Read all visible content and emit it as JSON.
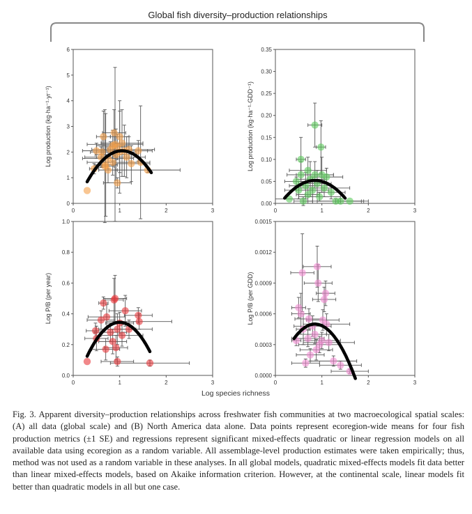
{
  "figure": {
    "title": "Global fish diversity–production relationships",
    "shared_xlabel": "Log species richness"
  },
  "caption": {
    "text": "Fig. 3. Apparent diversity–production relationships across freshwater fish communities at two macroecological spatial scales: (A) all data (global scale) and (B) North America data alone. Data points represent ecoregion-wide means for four fish production metrics (±1 SE) and regressions represent significant mixed-effects quadratic or linear regression models on all available data using ecoregion as a random variable. All assemblage-level production estimates were taken empirically; thus, method was not used as a random variable in these analyses. In all global models, quadratic mixed-effects models fit data better than linear mixed-effects models, based on Akaike information criterion. However, at the continental scale, linear models fit better than quadratic models in all but one case."
  },
  "colors": {
    "orange": "#f5a04a",
    "green": "#5cc95c",
    "red": "#e8383c",
    "pink": "#f08ad0",
    "curve": "#000000",
    "frame": "#555555",
    "errorbar": "#555555"
  },
  "chart_data": [
    {
      "type": "scatter",
      "id": "production-area",
      "ylabel": "Log production (kg·ha⁻¹·yr⁻¹)",
      "xlim": [
        0,
        3
      ],
      "ylim": [
        0,
        6
      ],
      "xticks": [
        "0",
        "1",
        "2",
        "3"
      ],
      "yticks": [
        "0",
        "1",
        "2",
        "3",
        "4",
        "5",
        "6"
      ],
      "color": "orange",
      "points": [
        {
          "x": 0.3,
          "y": 0.5,
          "xe": 0.0,
          "ye": 0.0
        },
        {
          "x": 0.45,
          "y": 1.35,
          "xe": 0.1,
          "ye": 0.2
        },
        {
          "x": 0.5,
          "y": 2.05,
          "xe": 0.3,
          "ye": 0.3
        },
        {
          "x": 0.6,
          "y": 1.8,
          "xe": 0.35,
          "ye": 0.4
        },
        {
          "x": 0.62,
          "y": 2.0,
          "xe": 0.25,
          "ye": 0.6
        },
        {
          "x": 0.65,
          "y": 2.6,
          "xe": 0.15,
          "ye": 1.0
        },
        {
          "x": 0.68,
          "y": 1.45,
          "xe": 0.2,
          "ye": 2.2
        },
        {
          "x": 0.7,
          "y": 1.5,
          "xe": 0.25,
          "ye": 2.0
        },
        {
          "x": 0.75,
          "y": 1.3,
          "xe": 0.2,
          "ye": 0.5
        },
        {
          "x": 0.75,
          "y": 1.75,
          "xe": 0.55,
          "ye": 0.4
        },
        {
          "x": 0.8,
          "y": 2.1,
          "xe": 0.4,
          "ye": 0.3
        },
        {
          "x": 0.85,
          "y": 2.25,
          "xe": 0.35,
          "ye": 0.6
        },
        {
          "x": 0.85,
          "y": 1.6,
          "xe": 0.55,
          "ye": 0.5
        },
        {
          "x": 0.88,
          "y": 2.75,
          "xe": 0.25,
          "ye": 0.9
        },
        {
          "x": 0.9,
          "y": 2.3,
          "xe": 0.6,
          "ye": 3.0
        },
        {
          "x": 0.92,
          "y": 1.9,
          "xe": 0.45,
          "ye": 1.0
        },
        {
          "x": 0.95,
          "y": 0.8,
          "xe": 0.3,
          "ye": 0.2
        },
        {
          "x": 0.95,
          "y": 2.2,
          "xe": 0.25,
          "ye": 0.5
        },
        {
          "x": 1.0,
          "y": 2.0,
          "xe": 0.35,
          "ye": 1.6
        },
        {
          "x": 1.0,
          "y": 2.6,
          "xe": 0.2,
          "ye": 1.4
        },
        {
          "x": 1.05,
          "y": 2.35,
          "xe": 0.45,
          "ye": 1.3
        },
        {
          "x": 1.1,
          "y": 2.05,
          "xe": 0.5,
          "ye": 1.0
        },
        {
          "x": 1.15,
          "y": 1.8,
          "xe": 0.4,
          "ye": 0.8
        },
        {
          "x": 1.2,
          "y": 2.1,
          "xe": 0.55,
          "ye": 0.5
        },
        {
          "x": 1.25,
          "y": 1.55,
          "xe": 0.4,
          "ye": 0.7
        },
        {
          "x": 1.4,
          "y": 2.05,
          "xe": 0.3,
          "ye": 0.4
        },
        {
          "x": 1.45,
          "y": 1.6,
          "xe": 0.2,
          "ye": 2.2
        },
        {
          "x": 1.6,
          "y": 1.3,
          "xe": 0.7,
          "ye": 0.1
        }
      ],
      "curve": {
        "x0": 0.3,
        "x1": 1.68,
        "a": -2.15,
        "b": 1.05,
        "c": 2.05
      }
    },
    {
      "type": "scatter",
      "id": "production-gdd",
      "ylabel": "Log production (kg·ha⁻¹·GDD⁻¹)",
      "xlim": [
        0,
        3
      ],
      "ylim": [
        0,
        0.35
      ],
      "xticks": [
        "0",
        "1",
        "2",
        "3"
      ],
      "yticks": [
        "0.00",
        "0.05",
        "0.10",
        "0.15",
        "0.20",
        "0.25",
        "0.30",
        "0.35"
      ],
      "color": "green",
      "points": [
        {
          "x": 0.3,
          "y": 0.01,
          "xe": 0.3,
          "ye": 0.0
        },
        {
          "x": 0.45,
          "y": 0.05,
          "xe": 0.25,
          "ye": 0.01
        },
        {
          "x": 0.5,
          "y": 0.03,
          "xe": 0.3,
          "ye": 0.02
        },
        {
          "x": 0.55,
          "y": 0.1,
          "xe": 0.1,
          "ye": 0.05
        },
        {
          "x": 0.55,
          "y": 0.065,
          "xe": 0.3,
          "ye": 0.03
        },
        {
          "x": 0.6,
          "y": 0.005,
          "xe": 0.2,
          "ye": 0.01
        },
        {
          "x": 0.65,
          "y": 0.04,
          "xe": 0.35,
          "ye": 0.03
        },
        {
          "x": 0.7,
          "y": 0.02,
          "xe": 0.25,
          "ye": 0.02
        },
        {
          "x": 0.7,
          "y": 0.075,
          "xe": 0.4,
          "ye": 0.03
        },
        {
          "x": 0.75,
          "y": 0.055,
          "xe": 0.3,
          "ye": 0.04
        },
        {
          "x": 0.8,
          "y": 0.03,
          "xe": 0.35,
          "ye": 0.03
        },
        {
          "x": 0.85,
          "y": 0.178,
          "xe": 0.15,
          "ye": 0.05
        },
        {
          "x": 0.85,
          "y": 0.065,
          "xe": 0.4,
          "ye": 0.03
        },
        {
          "x": 0.9,
          "y": 0.045,
          "xe": 0.3,
          "ye": 0.03
        },
        {
          "x": 0.95,
          "y": 0.015,
          "xe": 0.45,
          "ye": 0.01
        },
        {
          "x": 0.98,
          "y": 0.128,
          "xe": 0.1,
          "ye": 0.06
        },
        {
          "x": 1.0,
          "y": 0.065,
          "xe": 0.25,
          "ye": 0.04
        },
        {
          "x": 1.05,
          "y": 0.035,
          "xe": 0.55,
          "ye": 0.02
        },
        {
          "x": 1.1,
          "y": 0.06,
          "xe": 0.35,
          "ye": 0.02
        },
        {
          "x": 1.2,
          "y": 0.025,
          "xe": 0.3,
          "ye": 0.015
        },
        {
          "x": 1.3,
          "y": 0.005,
          "xe": 0.7,
          "ye": 0.005
        },
        {
          "x": 1.4,
          "y": 0.005,
          "xe": 0.5,
          "ye": 0.005
        },
        {
          "x": 1.6,
          "y": 0.005,
          "xe": 0.25,
          "ye": 0.0
        }
      ],
      "curve": {
        "x0": 0.2,
        "x1": 1.5,
        "a": -0.095,
        "b": 0.85,
        "c": 0.052
      }
    },
    {
      "type": "scatter",
      "id": "pb-year",
      "ylabel": "Log P/B (per year)",
      "xlim": [
        0,
        3
      ],
      "ylim": [
        0,
        1.0
      ],
      "xticks": [
        "0",
        "1",
        "2",
        "3"
      ],
      "yticks": [
        "0.0",
        "0.2",
        "0.4",
        "0.6",
        "0.8",
        "1.0"
      ],
      "color": "red",
      "points": [
        {
          "x": 0.3,
          "y": 0.09,
          "xe": 0.0,
          "ye": 0.0
        },
        {
          "x": 0.48,
          "y": 0.29,
          "xe": 0.2,
          "ye": 0.05
        },
        {
          "x": 0.5,
          "y": 0.24,
          "xe": 0.25,
          "ye": 0.08
        },
        {
          "x": 0.6,
          "y": 0.36,
          "xe": 0.3,
          "ye": 0.06
        },
        {
          "x": 0.65,
          "y": 0.47,
          "xe": 0.1,
          "ye": 0.04
        },
        {
          "x": 0.7,
          "y": 0.17,
          "xe": 0.3,
          "ye": 0.07
        },
        {
          "x": 0.72,
          "y": 0.38,
          "xe": 0.4,
          "ye": 0.08
        },
        {
          "x": 0.8,
          "y": 0.28,
          "xe": 0.35,
          "ye": 0.06
        },
        {
          "x": 0.85,
          "y": 0.22,
          "xe": 0.3,
          "ye": 0.08
        },
        {
          "x": 0.88,
          "y": 0.49,
          "xe": 0.2,
          "ye": 0.14
        },
        {
          "x": 0.9,
          "y": 0.5,
          "xe": 0.25,
          "ye": 0.15
        },
        {
          "x": 0.92,
          "y": 0.18,
          "xe": 0.25,
          "ye": 0.08
        },
        {
          "x": 0.95,
          "y": 0.09,
          "xe": 0.35,
          "ye": 0.03
        },
        {
          "x": 0.95,
          "y": 0.3,
          "xe": 0.4,
          "ye": 0.1
        },
        {
          "x": 1.0,
          "y": 0.34,
          "xe": 0.3,
          "ye": 0.07
        },
        {
          "x": 1.05,
          "y": 0.26,
          "xe": 0.45,
          "ye": 0.07
        },
        {
          "x": 1.12,
          "y": 0.42,
          "xe": 0.35,
          "ye": 0.1
        },
        {
          "x": 1.2,
          "y": 0.3,
          "xe": 0.5,
          "ye": 0.06
        },
        {
          "x": 1.4,
          "y": 0.39,
          "xe": 0.3,
          "ye": 0.05
        },
        {
          "x": 1.42,
          "y": 0.35,
          "xe": 0.7,
          "ye": 0.05
        },
        {
          "x": 1.65,
          "y": 0.08,
          "xe": 0.85,
          "ye": 0.02
        }
      ],
      "curve": {
        "x0": 0.3,
        "x1": 1.65,
        "a": -0.45,
        "b": 1.0,
        "c": 0.345
      }
    },
    {
      "type": "scatter",
      "id": "pb-gdd",
      "ylabel": "Log P/B (per GDD)",
      "xlim": [
        0,
        3
      ],
      "ylim": [
        0,
        0.0015
      ],
      "xticks": [
        "0",
        "1",
        "2",
        "3"
      ],
      "yticks": [
        "0.0000",
        "0.0003",
        "0.0006",
        "0.0009",
        "0.0012",
        "0.0015"
      ],
      "color": "pink",
      "points": [
        {
          "x": 0.45,
          "y": 0.00034,
          "xe": 0.1,
          "ye": 5e-05
        },
        {
          "x": 0.5,
          "y": 0.00066,
          "xe": 0.15,
          "ye": 0.0001
        },
        {
          "x": 0.55,
          "y": 0.0006,
          "xe": 0.2,
          "ye": 0.0002
        },
        {
          "x": 0.58,
          "y": 0.001,
          "xe": 0.25,
          "ye": 0.00038
        },
        {
          "x": 0.6,
          "y": 0.00045,
          "xe": 0.15,
          "ye": 0.00015
        },
        {
          "x": 0.65,
          "y": 0.00012,
          "xe": 0.3,
          "ye": 4e-05
        },
        {
          "x": 0.7,
          "y": 0.00036,
          "xe": 0.35,
          "ye": 8e-05
        },
        {
          "x": 0.72,
          "y": 0.00055,
          "xe": 0.3,
          "ye": 0.0001
        },
        {
          "x": 0.75,
          "y": 0.0002,
          "xe": 0.3,
          "ye": 6e-05
        },
        {
          "x": 0.8,
          "y": 0.00048,
          "xe": 0.4,
          "ye": 0.0001
        },
        {
          "x": 0.85,
          "y": 0.0004,
          "xe": 0.25,
          "ye": 9e-05
        },
        {
          "x": 0.88,
          "y": 0.00025,
          "xe": 0.35,
          "ye": 0.0001
        },
        {
          "x": 0.9,
          "y": 0.00106,
          "xe": 0.3,
          "ye": 0.0002
        },
        {
          "x": 0.92,
          "y": 0.0009,
          "xe": 0.3,
          "ye": 0.00018
        },
        {
          "x": 0.95,
          "y": 0.0003,
          "xe": 0.45,
          "ye": 8e-05
        },
        {
          "x": 1.0,
          "y": 0.00034,
          "xe": 0.4,
          "ye": 8e-05
        },
        {
          "x": 1.02,
          "y": 0.00054,
          "xe": 0.35,
          "ye": 0.0001
        },
        {
          "x": 1.05,
          "y": 0.00074,
          "xe": 0.25,
          "ye": 0.00012
        },
        {
          "x": 1.08,
          "y": 0.0008,
          "xe": 0.2,
          "ye": 0.00012
        },
        {
          "x": 1.1,
          "y": 0.0005,
          "xe": 0.5,
          "ye": 0.0001
        },
        {
          "x": 1.15,
          "y": 0.00032,
          "xe": 0.55,
          "ye": 8e-05
        },
        {
          "x": 1.25,
          "y": 0.00014,
          "xe": 0.5,
          "ye": 5e-05
        },
        {
          "x": 1.4,
          "y": 0.0001,
          "xe": 0.45,
          "ye": 4e-05
        },
        {
          "x": 1.6,
          "y": 4e-05,
          "xe": 0.4,
          "ye": 2e-05
        }
      ],
      "curve": {
        "x0": 0.4,
        "x1": 1.72,
        "a": -0.0007,
        "b": 0.85,
        "c": 0.0005
      }
    }
  ]
}
